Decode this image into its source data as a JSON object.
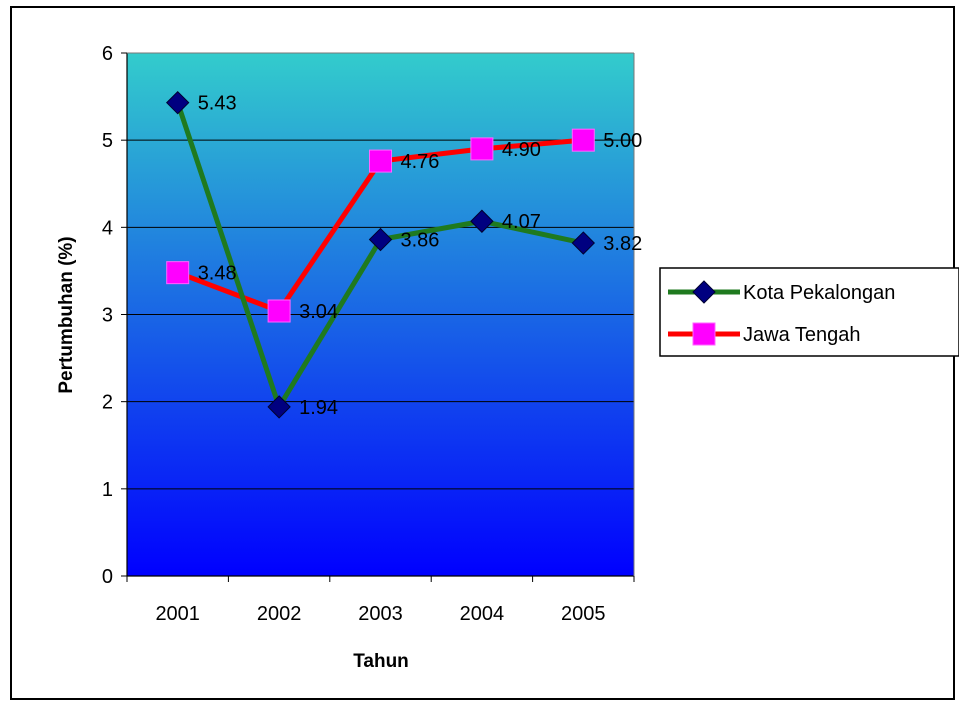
{
  "chart_data": {
    "type": "line",
    "title": "",
    "xlabel": "Tahun",
    "ylabel": "Pertumbuhan (%)",
    "ylim": [
      0,
      6
    ],
    "yticks": [
      0,
      1,
      2,
      3,
      4,
      5,
      6
    ],
    "categories": [
      "2001",
      "2002",
      "2003",
      "2004",
      "2005"
    ],
    "grid": true,
    "legend_position": "right",
    "series": [
      {
        "name": "Kota Pekalongan",
        "values": [
          5.43,
          1.94,
          3.86,
          4.07,
          3.82
        ],
        "labels": [
          "5.43",
          "1.94",
          "3.86",
          "4.07",
          "3.82"
        ],
        "line_color": "#1f7a1f",
        "marker": "diamond",
        "marker_color": "#000080"
      },
      {
        "name": "Jawa Tengah",
        "values": [
          3.48,
          3.04,
          4.76,
          4.9,
          5.0
        ],
        "labels": [
          "3.48",
          "3.04",
          "4.76",
          "4.90",
          "5.00"
        ],
        "line_color": "#ff0000",
        "marker": "square",
        "marker_color": "#ff00ff"
      }
    ],
    "plot_background": {
      "top": "#33cccc",
      "bottom": "#0000ff"
    }
  }
}
